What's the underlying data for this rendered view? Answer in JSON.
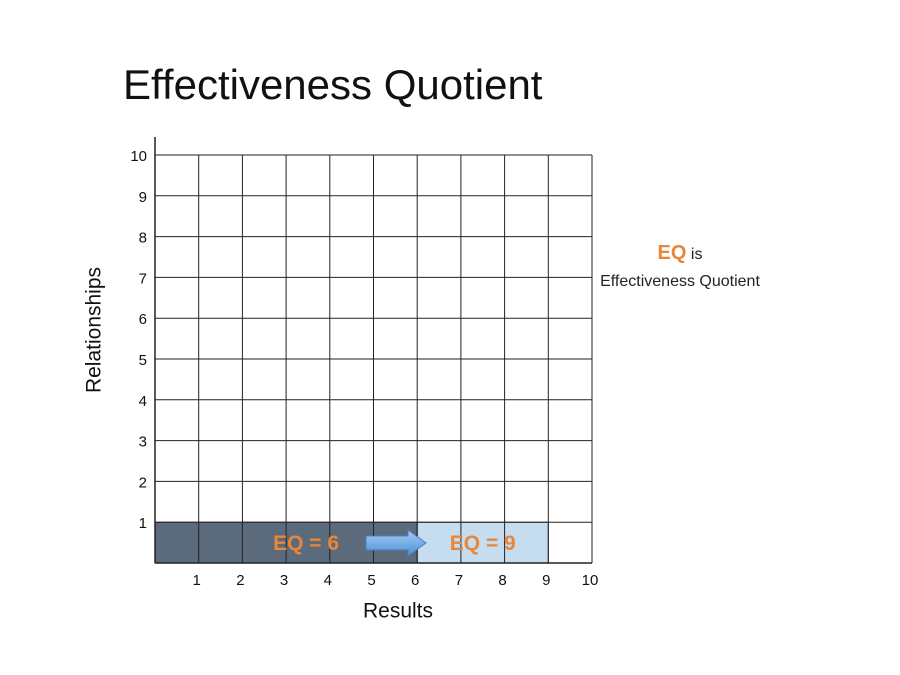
{
  "chart_data": {
    "type": "rect",
    "title": "Effectiveness Quotient",
    "xlabel": "Results",
    "ylabel": "Relationships",
    "xlim": [
      0,
      10
    ],
    "ylim": [
      0,
      10
    ],
    "xticks": [
      1,
      2,
      3,
      4,
      5,
      6,
      7,
      8,
      9,
      10
    ],
    "yticks": [
      1,
      2,
      3,
      4,
      5,
      6,
      7,
      8,
      9,
      10
    ],
    "grid": true,
    "rects": [
      {
        "label": "EQ = 6",
        "x": [
          0,
          6
        ],
        "y": [
          0,
          1
        ],
        "color": "#5b6b7b"
      },
      {
        "label": "EQ = 9",
        "x": [
          6,
          9
        ],
        "y": [
          0,
          1
        ],
        "color": "#c6dcef"
      }
    ],
    "label_color": "#e8863a",
    "note": {
      "term": "EQ",
      "text": "is",
      "definition": "Effectiveness Quotient"
    }
  }
}
